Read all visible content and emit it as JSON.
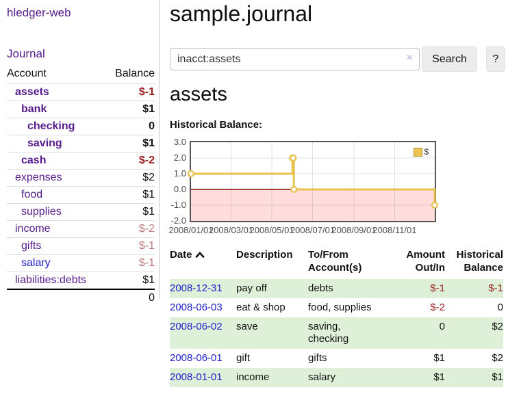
{
  "app": {
    "brand": "hledger-web",
    "nav": {
      "journal": "Journal"
    }
  },
  "sidebar": {
    "headers": {
      "account": "Account",
      "balance": "Balance"
    },
    "accounts": [
      {
        "name": "assets",
        "balance": "$-1"
      },
      {
        "name": "bank",
        "balance": "$1"
      },
      {
        "name": "checking",
        "balance": "0"
      },
      {
        "name": "saving",
        "balance": "$1"
      },
      {
        "name": "cash",
        "balance": "$-2"
      },
      {
        "name": "expenses",
        "balance": "$2"
      },
      {
        "name": "food",
        "balance": "$1"
      },
      {
        "name": "supplies",
        "balance": "$1"
      },
      {
        "name": "income",
        "balance": "$-2"
      },
      {
        "name": "gifts",
        "balance": "$-1"
      },
      {
        "name": "salary",
        "balance": "$-1"
      },
      {
        "name": "liabilities:debts",
        "balance": "$1"
      }
    ],
    "total": "0"
  },
  "search": {
    "value": "inacct:assets",
    "clear": "×",
    "button": "Search",
    "help": "?"
  },
  "main": {
    "journal_title": "sample.journal",
    "account_title": "assets",
    "chart_heading": "Historical Balance:"
  },
  "chart_data": {
    "type": "line",
    "style": "step-after",
    "title": "Historical Balance",
    "series": [
      {
        "name": "$",
        "color": "#E8C24D",
        "points": [
          {
            "x": "2008-01-01",
            "y": 1
          },
          {
            "x": "2008-06-01",
            "y": 2
          },
          {
            "x": "2008-06-02",
            "y": 2
          },
          {
            "x": "2008-06-03",
            "y": 0
          },
          {
            "x": "2008-12-31",
            "y": -1
          }
        ]
      }
    ],
    "x_range": [
      "2008-01-01",
      "2008-12-31"
    ],
    "ylim": [
      -2,
      3
    ],
    "y_ticks": [
      "3.0",
      "2.0",
      "1.0",
      "0.0",
      "-1.0",
      "-2.0"
    ],
    "x_ticks": [
      "2008/01/01",
      "2008/03/01",
      "2008/05/01",
      "2008/07/01",
      "2008/09/01",
      "2008/11/01"
    ],
    "legend": {
      "label": "$",
      "position": "top-right"
    },
    "grid": true,
    "negative_region_highlight": true,
    "zero_line_color": "#8b0000"
  },
  "register": {
    "headers": {
      "date": "Date",
      "description": "Description",
      "accounts": "To/From Account(s)",
      "amount": "Amount Out/In",
      "balance": "Historical Balance"
    },
    "rows": [
      {
        "date": "2008-12-31",
        "description": "pay off",
        "accounts": "debts",
        "amount": "$-1",
        "balance": "$-1"
      },
      {
        "date": "2008-06-03",
        "description": "eat & shop",
        "accounts": "food, supplies",
        "amount": "$-2",
        "balance": "0"
      },
      {
        "date": "2008-06-02",
        "description": "save",
        "accounts": "saving, checking",
        "amount": "0",
        "balance": "$2"
      },
      {
        "date": "2008-06-01",
        "description": "gift",
        "accounts": "gifts",
        "amount": "$1",
        "balance": "$2"
      },
      {
        "date": "2008-01-01",
        "description": "income",
        "accounts": "salary",
        "amount": "$1",
        "balance": "$1"
      }
    ]
  },
  "colors": {
    "accent_purple": "#551a8b",
    "link_blue": "#2222cc",
    "negative_strong": "#9b1c1c",
    "negative_muted": "#c07c7c",
    "row_green": "#dff0d8",
    "chart_yellow": "#E8C24D"
  }
}
